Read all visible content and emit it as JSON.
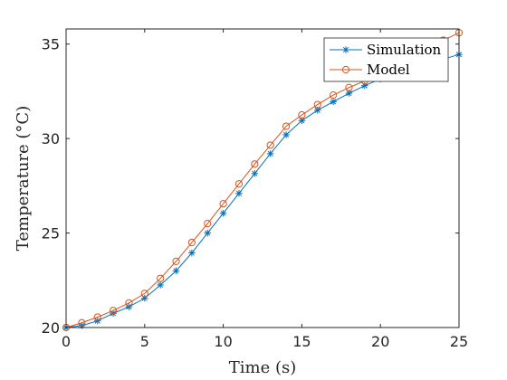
{
  "chart_data": {
    "type": "line",
    "xlabel": "Time (s)",
    "ylabel": "Temperature (°C)",
    "xlim": [
      0,
      25
    ],
    "ylim": [
      20,
      35.8
    ],
    "xticks": [
      0,
      5,
      10,
      15,
      20,
      25
    ],
    "yticks": [
      20,
      25,
      30,
      35
    ],
    "grid": false,
    "legend_position": "top-right",
    "series": [
      {
        "name": "Simulation",
        "color": "#0072BD",
        "marker": "asterisk",
        "x": [
          0,
          1,
          2,
          3,
          4,
          5,
          6,
          7,
          8,
          9,
          10,
          11,
          12,
          13,
          14,
          15,
          16,
          17,
          18,
          19,
          20,
          21,
          22,
          23,
          24,
          25
        ],
        "y": [
          20.0,
          20.1,
          20.35,
          20.75,
          21.1,
          21.55,
          22.25,
          23.0,
          23.95,
          25.0,
          26.05,
          27.1,
          28.15,
          29.2,
          30.2,
          30.95,
          31.5,
          31.95,
          32.4,
          32.8,
          33.15,
          33.4,
          33.7,
          33.95,
          34.2,
          34.45
        ]
      },
      {
        "name": "Model",
        "color": "#D95319",
        "marker": "circle",
        "x": [
          0,
          1,
          2,
          3,
          4,
          5,
          6,
          7,
          8,
          9,
          10,
          11,
          12,
          13,
          14,
          15,
          16,
          17,
          18,
          19,
          20,
          21,
          22,
          23,
          24,
          25
        ],
        "y": [
          20.0,
          20.25,
          20.55,
          20.9,
          21.3,
          21.8,
          22.6,
          23.5,
          24.5,
          25.5,
          26.55,
          27.6,
          28.65,
          29.65,
          30.65,
          31.25,
          31.8,
          32.3,
          32.7,
          33.05,
          33.45,
          33.85,
          34.3,
          34.75,
          35.2,
          35.6
        ]
      }
    ]
  }
}
